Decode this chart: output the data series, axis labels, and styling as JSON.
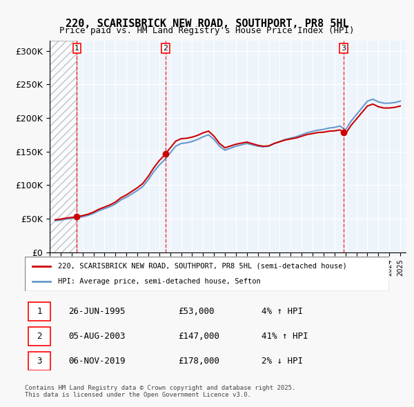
{
  "title1": "220, SCARISBRICK NEW ROAD, SOUTHPORT, PR8 5HL",
  "title2": "Price paid vs. HM Land Registry's House Price Index (HPI)",
  "ylabel": "",
  "xlim_start": 1993.0,
  "xlim_end": 2025.5,
  "ylim": [
    0,
    315000
  ],
  "yticks": [
    0,
    50000,
    100000,
    150000,
    200000,
    250000,
    300000
  ],
  "ytick_labels": [
    "£0",
    "£50K",
    "£100K",
    "£150K",
    "£200K",
    "£250K",
    "£300K"
  ],
  "transactions": [
    {
      "num": 1,
      "date": "26-JUN-1995",
      "year": 1995.48,
      "price": 53000,
      "pct": "4%",
      "dir": "↑"
    },
    {
      "num": 2,
      "date": "05-AUG-2003",
      "year": 2003.59,
      "price": 147000,
      "pct": "41%",
      "dir": "↑"
    },
    {
      "num": 3,
      "date": "06-NOV-2019",
      "year": 2019.84,
      "price": 178000,
      "pct": "2%",
      "dir": "↓"
    }
  ],
  "legend_line1": "220, SCARISBRICK NEW ROAD, SOUTHPORT, PR8 5HL (semi-detached house)",
  "legend_line2": "HPI: Average price, semi-detached house, Sefton",
  "footer": "Contains HM Land Registry data © Crown copyright and database right 2025.\nThis data is licensed under the Open Government Licence v3.0.",
  "hpi_color": "#6699cc",
  "price_color": "#cc0000",
  "hatch_end_year": 1995.48,
  "bg_color": "#ddeeff",
  "plot_bg": "#eef4fb"
}
